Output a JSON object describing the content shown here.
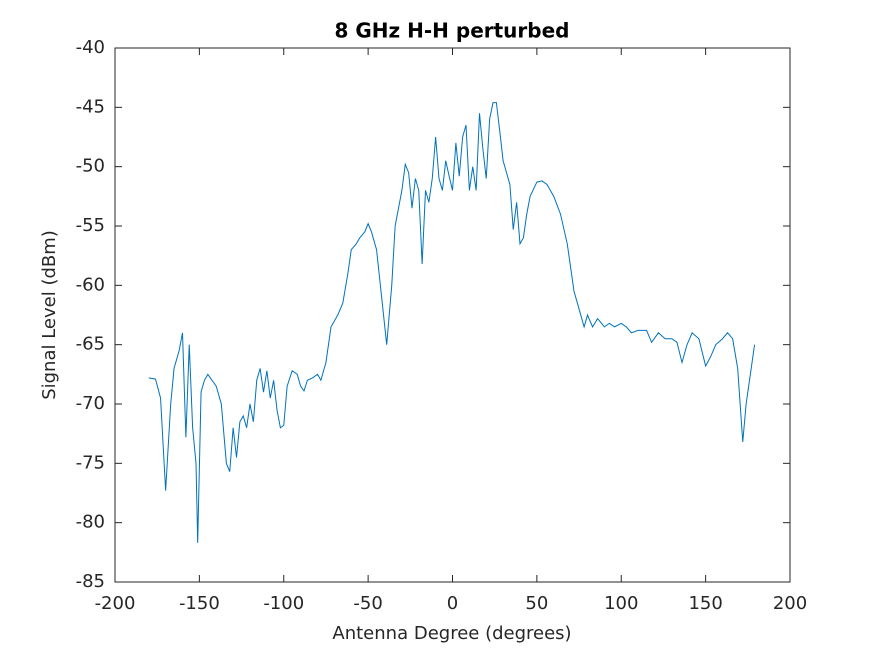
{
  "chart_data": {
    "type": "line",
    "title": "8 GHz H-H perturbed",
    "x_label": "Antenna Degree (degrees)",
    "y_label": "Signal Level (dBm)",
    "xlim": [
      -200,
      200
    ],
    "ylim": [
      -85,
      -40
    ],
    "xticks": [
      -200,
      -150,
      -100,
      -50,
      0,
      50,
      100,
      150,
      200
    ],
    "yticks": [
      -85,
      -80,
      -75,
      -70,
      -65,
      -60,
      -55,
      -50,
      -45,
      -40
    ],
    "grid": false,
    "series": [
      {
        "color": "#0072bd",
        "x": [
          -180,
          -176,
          -173,
          -170,
          -167,
          -165,
          -162,
          -160,
          -158,
          -156,
          -154,
          -152,
          -151,
          -149,
          -147,
          -145,
          -140,
          -137,
          -134,
          -132,
          -130,
          -128,
          -126,
          -124,
          -122,
          -120,
          -118,
          -116,
          -114,
          -112,
          -110,
          -108,
          -106,
          -104,
          -102,
          -100,
          -98,
          -95,
          -92,
          -90,
          -88,
          -86,
          -83,
          -80,
          -78,
          -75,
          -72,
          -68,
          -65,
          -62,
          -60,
          -57,
          -55,
          -52,
          -50,
          -48,
          -45,
          -42,
          -39,
          -36,
          -34,
          -32,
          -30,
          -28,
          -26,
          -24,
          -22,
          -20,
          -18,
          -16,
          -14,
          -12,
          -10,
          -8,
          -6,
          -4,
          -2,
          0,
          2,
          4,
          6,
          8,
          10,
          12,
          14,
          16,
          18,
          20,
          22,
          24,
          26,
          28,
          30,
          32,
          34,
          36,
          38,
          40,
          42,
          44,
          46,
          50,
          53,
          56,
          60,
          64,
          68,
          72,
          75,
          78,
          80,
          83,
          86,
          90,
          93,
          96,
          100,
          103,
          106,
          110,
          115,
          118,
          122,
          126,
          130,
          133,
          136,
          139,
          142,
          146,
          150,
          153,
          156,
          160,
          163,
          166,
          169,
          172,
          174,
          177,
          179
        ],
        "values": [
          -67.8,
          -67.9,
          -69.5,
          -77.3,
          -70,
          -67,
          -65.5,
          -64,
          -72.8,
          -65,
          -72,
          -75,
          -81.7,
          -69,
          -68,
          -67.5,
          -68.5,
          -70,
          -75,
          -75.7,
          -72,
          -74.5,
          -71.5,
          -71,
          -72,
          -70,
          -71.5,
          -68,
          -67,
          -69,
          -67.2,
          -69.5,
          -68,
          -70.5,
          -72,
          -71.8,
          -68.5,
          -67.2,
          -67.5,
          -68.5,
          -68.9,
          -68,
          -67.8,
          -67.5,
          -68,
          -66.5,
          -63.5,
          -62.5,
          -61.5,
          -59,
          -57,
          -56.5,
          -56,
          -55.5,
          -54.8,
          -55.5,
          -57,
          -61,
          -65,
          -60,
          -55,
          -53.5,
          -52,
          -49.8,
          -50.5,
          -53.5,
          -51,
          -52,
          -58.2,
          -52,
          -53,
          -51,
          -47.5,
          -51,
          -52,
          -49.5,
          -50.8,
          -52,
          -48,
          -50.8,
          -47.5,
          -46.5,
          -52,
          -50,
          -52,
          -45.5,
          -48.5,
          -51,
          -46,
          -44.6,
          -44.6,
          -47,
          -49.5,
          -50.5,
          -51.5,
          -55.3,
          -53,
          -56.5,
          -56,
          -54,
          -52.5,
          -51.3,
          -51.2,
          -51.5,
          -52.5,
          -54,
          -56.5,
          -60.5,
          -62,
          -63.5,
          -62.5,
          -63.5,
          -62.8,
          -63.5,
          -63.2,
          -63.5,
          -63.2,
          -63.5,
          -64,
          -63.8,
          -63.8,
          -64.8,
          -64,
          -64.5,
          -64.5,
          -64.8,
          -66.5,
          -65,
          -64,
          -64.5,
          -66.8,
          -66,
          -65,
          -64.5,
          -64,
          -64.5,
          -67,
          -73.2,
          -70,
          -67,
          -65
        ]
      }
    ]
  }
}
